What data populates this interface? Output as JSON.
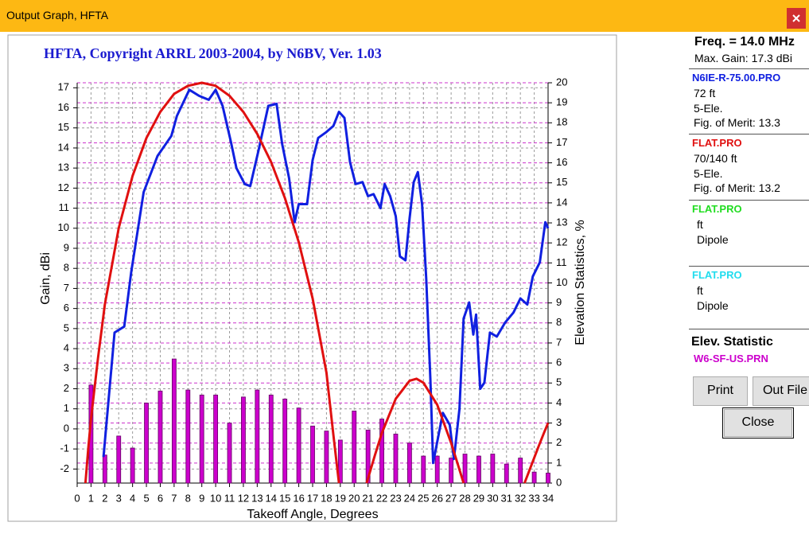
{
  "window": {
    "title": "Output Graph, HFTA"
  },
  "chart_data": {
    "type": "line",
    "title": "HFTA, Copyright ARRL 2003-2004, by N6BV, Ver. 1.03",
    "x_label": "Takeoff Angle, Degrees",
    "y_label": "Gain, dBi",
    "y2_label": "Elevation Statistics, %",
    "xlim": [
      0,
      34
    ],
    "xticks": [
      0,
      1,
      2,
      3,
      4,
      5,
      6,
      7,
      8,
      9,
      10,
      11,
      12,
      13,
      14,
      15,
      16,
      17,
      18,
      19,
      20,
      21,
      22,
      23,
      24,
      25,
      26,
      27,
      28,
      29,
      30,
      31,
      32,
      33,
      34
    ],
    "ylim": [
      -2.7,
      17.25
    ],
    "yticks": [
      -2,
      -1,
      0,
      1,
      2,
      3,
      4,
      5,
      6,
      7,
      8,
      9,
      10,
      11,
      12,
      13,
      14,
      15,
      16,
      17
    ],
    "y2lim": [
      0,
      20
    ],
    "y2ticks": [
      0,
      1,
      2,
      3,
      4,
      5,
      6,
      7,
      8,
      9,
      10,
      11,
      12,
      13,
      14,
      15,
      16,
      17,
      18,
      19,
      20
    ],
    "grid": true,
    "series": [
      {
        "name": "N6IE-R-75.00.PRO",
        "type": "line",
        "color": "#1020e0",
        "x": [
          1.9,
          2.7,
          3.4,
          3.9,
          4.8,
          5.8,
          6.8,
          7.2,
          8.1,
          8.8,
          9.5,
          10,
          10.5,
          11.1,
          11.5,
          12.1,
          12.5,
          13.1,
          13.8,
          14.4,
          14.8,
          15.3,
          15.7,
          16,
          16.6,
          17,
          17.4,
          18,
          18.5,
          18.9,
          19.3,
          19.7,
          20.1,
          20.6,
          21,
          21.4,
          21.9,
          22.2,
          22.6,
          23,
          23.3,
          23.7,
          24,
          24.3,
          24.6,
          24.9,
          25.2,
          25.5,
          25.7,
          26.4,
          26.9,
          27.2,
          27.6,
          27.9,
          28.3,
          28.6,
          28.8,
          29.1,
          29.4,
          29.8,
          30.3,
          30.9,
          31.5,
          32,
          32.5,
          32.9,
          33.4,
          33.8,
          34
        ],
        "values": [
          -1.4,
          4.8,
          5.1,
          7.8,
          11.8,
          13.6,
          14.6,
          15.6,
          16.9,
          16.6,
          16.4,
          16.9,
          16.1,
          14.3,
          13,
          12.2,
          12.1,
          13.9,
          16.1,
          16.2,
          14.2,
          12.5,
          10.3,
          11.2,
          11.2,
          13.4,
          14.5,
          14.8,
          15.1,
          15.8,
          15.5,
          13.3,
          12.2,
          12.3,
          11.6,
          11.7,
          11,
          12.2,
          11.6,
          10.6,
          8.6,
          8.4,
          10.5,
          12.3,
          12.8,
          11.2,
          7.5,
          2.5,
          -1.7,
          0.8,
          0.2,
          -1.5,
          1,
          5.5,
          6.3,
          4.7,
          5.7,
          2,
          2.3,
          4.8,
          4.6,
          5.3,
          5.8,
          6.5,
          6.2,
          7.6,
          8.3,
          10.3,
          10
        ]
      },
      {
        "name": "FLAT.PRO",
        "type": "line",
        "color": "#e01010",
        "x": [
          0.6,
          0.8,
          1,
          1.5,
          2,
          3,
          4,
          5,
          6,
          7,
          8,
          9,
          10,
          11,
          12,
          13,
          14,
          15,
          16,
          17,
          18,
          18.5,
          18.9,
          null,
          20.9,
          21.5,
          22,
          23,
          24,
          24.5,
          25,
          26,
          27,
          27.5,
          27.9,
          null,
          32.3,
          32.8,
          33.3,
          33.7,
          34
        ],
        "values": [
          -2.7,
          -1,
          0.5,
          3.5,
          6.2,
          10,
          12.6,
          14.5,
          15.8,
          16.7,
          17.1,
          17.25,
          17.1,
          16.6,
          15.8,
          14.7,
          13.3,
          11.5,
          9.3,
          6.5,
          2.8,
          -0.3,
          -2.7,
          null,
          -2.7,
          -1.3,
          -0.2,
          1.5,
          2.4,
          2.5,
          2.3,
          1.2,
          -0.7,
          -1.8,
          -2.7,
          null,
          -2.7,
          -1.8,
          -0.9,
          -0.2,
          0.3
        ]
      },
      {
        "name": "W6-SF-US.PRN",
        "type": "bar",
        "axis": "y2",
        "color": "#cc00cc",
        "x": [
          1,
          2,
          3,
          4,
          5,
          6,
          7,
          8,
          9,
          10,
          11,
          12,
          13,
          14,
          15,
          16,
          17,
          18,
          19,
          20,
          21,
          22,
          23,
          24,
          25,
          26,
          27,
          28,
          29,
          30,
          31,
          32,
          33,
          34
        ],
        "values": [
          4.9,
          1.4,
          2.35,
          1.75,
          4,
          4.6,
          6.2,
          4.65,
          4.4,
          4.4,
          3,
          4.3,
          4.65,
          4.4,
          4.2,
          3.75,
          2.85,
          2.6,
          2.15,
          3.6,
          2.65,
          3.2,
          2.45,
          2,
          1.35,
          1.35,
          1.25,
          1.45,
          1.35,
          1.45,
          0.95,
          1.25,
          0.55,
          0.5
        ]
      }
    ]
  },
  "panel": {
    "freq": "Freq. = 14.0 MHz",
    "max_gain": "Max. Gain: 17.3 dBi",
    "antennas": [
      {
        "lines": [
          "72 ft",
          "5-Ele.",
          "Fig. of Merit:  13.3"
        ]
      },
      {
        "lines": [
          "70/140 ft",
          "5-Ele.",
          "Fig. of Merit:  13.2"
        ]
      },
      {
        "name": "FLAT.PRO",
        "color": "#22dd22",
        "lines": [
          "ft",
          "Dipole"
        ]
      },
      {
        "name": "FLAT.PRO",
        "color": "#22ddee",
        "lines": [
          "ft",
          "Dipole"
        ]
      }
    ],
    "elev_label": "Elev. Statistic",
    "buttons": [
      "Print",
      "Out File",
      "Close"
    ]
  }
}
